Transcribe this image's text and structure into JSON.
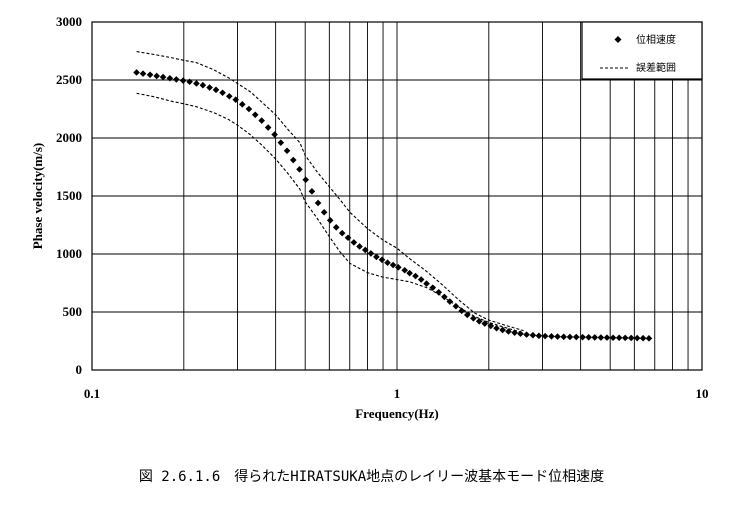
{
  "caption": "図 2.6.1.6　得られたHIRATSUKA地点のレイリー波基本モード位相速度",
  "chart_data": {
    "type": "scatter",
    "title": "",
    "xlabel": "Frequency(Hz)",
    "ylabel": "Phase velocity(m/s)",
    "x_scale": "log",
    "xlim": [
      0.1,
      10
    ],
    "ylim": [
      0,
      3000
    ],
    "x_tick_labels": [
      "0.1",
      "1",
      "10"
    ],
    "y_ticks": [
      0,
      500,
      1000,
      1500,
      2000,
      2500,
      3000
    ],
    "grid": true,
    "legend_position": "top-right",
    "series": [
      {
        "name": "位相速度",
        "style": "points",
        "color": "#000000",
        "x": [
          0.14,
          0.147,
          0.155,
          0.163,
          0.171,
          0.18,
          0.189,
          0.199,
          0.209,
          0.22,
          0.231,
          0.243,
          0.255,
          0.268,
          0.282,
          0.296,
          0.311,
          0.327,
          0.343,
          0.36,
          0.378,
          0.397,
          0.416,
          0.436,
          0.457,
          0.479,
          0.502,
          0.526,
          0.551,
          0.577,
          0.604,
          0.632,
          0.661,
          0.691,
          0.722,
          0.754,
          0.787,
          0.821,
          0.856,
          0.893,
          0.931,
          0.971,
          1.01,
          1.06,
          1.1,
          1.15,
          1.2,
          1.25,
          1.31,
          1.37,
          1.43,
          1.49,
          1.56,
          1.63,
          1.7,
          1.78,
          1.86,
          1.94,
          2.03,
          2.12,
          2.22,
          2.32,
          2.43,
          2.54,
          2.66,
          2.79,
          2.92,
          3.06,
          3.21,
          3.36,
          3.52,
          3.69,
          3.87,
          4.06,
          4.25,
          4.45,
          4.66,
          4.88,
          5.11,
          5.35,
          5.6,
          5.86,
          6.13,
          6.41,
          6.7
        ],
        "y": [
          2565,
          2555,
          2545,
          2535,
          2525,
          2515,
          2505,
          2495,
          2485,
          2470,
          2455,
          2435,
          2415,
          2390,
          2360,
          2330,
          2290,
          2250,
          2200,
          2150,
          2090,
          2030,
          1960,
          1890,
          1810,
          1730,
          1640,
          1540,
          1440,
          1360,
          1290,
          1230,
          1180,
          1140,
          1100,
          1065,
          1035,
          1005,
          975,
          950,
          925,
          905,
          885,
          860,
          835,
          810,
          780,
          745,
          710,
          670,
          630,
          590,
          550,
          510,
          475,
          445,
          420,
          400,
          380,
          360,
          345,
          332,
          322,
          313,
          305,
          300,
          295,
          292,
          290,
          288,
          286,
          285,
          284,
          283,
          282,
          281,
          280,
          279,
          278,
          278,
          277,
          276,
          275,
          274,
          273
        ]
      },
      {
        "name": "誤差範囲",
        "style": "dashed",
        "color": "#000000",
        "bands": [
          {
            "x": [
              0.14,
              0.16,
              0.18,
              0.2,
              0.22,
              0.25,
              0.28,
              0.3,
              0.33,
              0.36,
              0.4,
              0.44,
              0.48,
              0.5,
              0.55,
              0.6,
              0.65,
              0.7,
              0.8,
              0.9,
              1.0,
              1.1,
              1.25,
              1.4,
              1.6,
              1.8,
              2.0,
              2.3,
              2.6
            ],
            "y": [
              2745,
              2720,
              2695,
              2670,
              2650,
              2590,
              2520,
              2470,
              2400,
              2310,
              2200,
              2070,
              1960,
              1850,
              1700,
              1580,
              1470,
              1360,
              1220,
              1120,
              1050,
              960,
              850,
              740,
              600,
              490,
              430,
              380,
              340
            ]
          },
          {
            "x": [
              0.14,
              0.16,
              0.18,
              0.2,
              0.22,
              0.25,
              0.28,
              0.3,
              0.33,
              0.36,
              0.4,
              0.44,
              0.48,
              0.5,
              0.55,
              0.6,
              0.65,
              0.7,
              0.8,
              0.9,
              1.0,
              1.1,
              1.25,
              1.4,
              1.6,
              1.8,
              2.0,
              2.3,
              2.6
            ],
            "y": [
              2385,
              2355,
              2320,
              2295,
              2270,
              2220,
              2160,
              2110,
              2030,
              1940,
              1820,
              1690,
              1560,
              1450,
              1300,
              1150,
              1020,
              920,
              840,
              800,
              780,
              760,
              710,
              640,
              540,
              460,
              410,
              360,
              320
            ]
          }
        ]
      }
    ]
  }
}
